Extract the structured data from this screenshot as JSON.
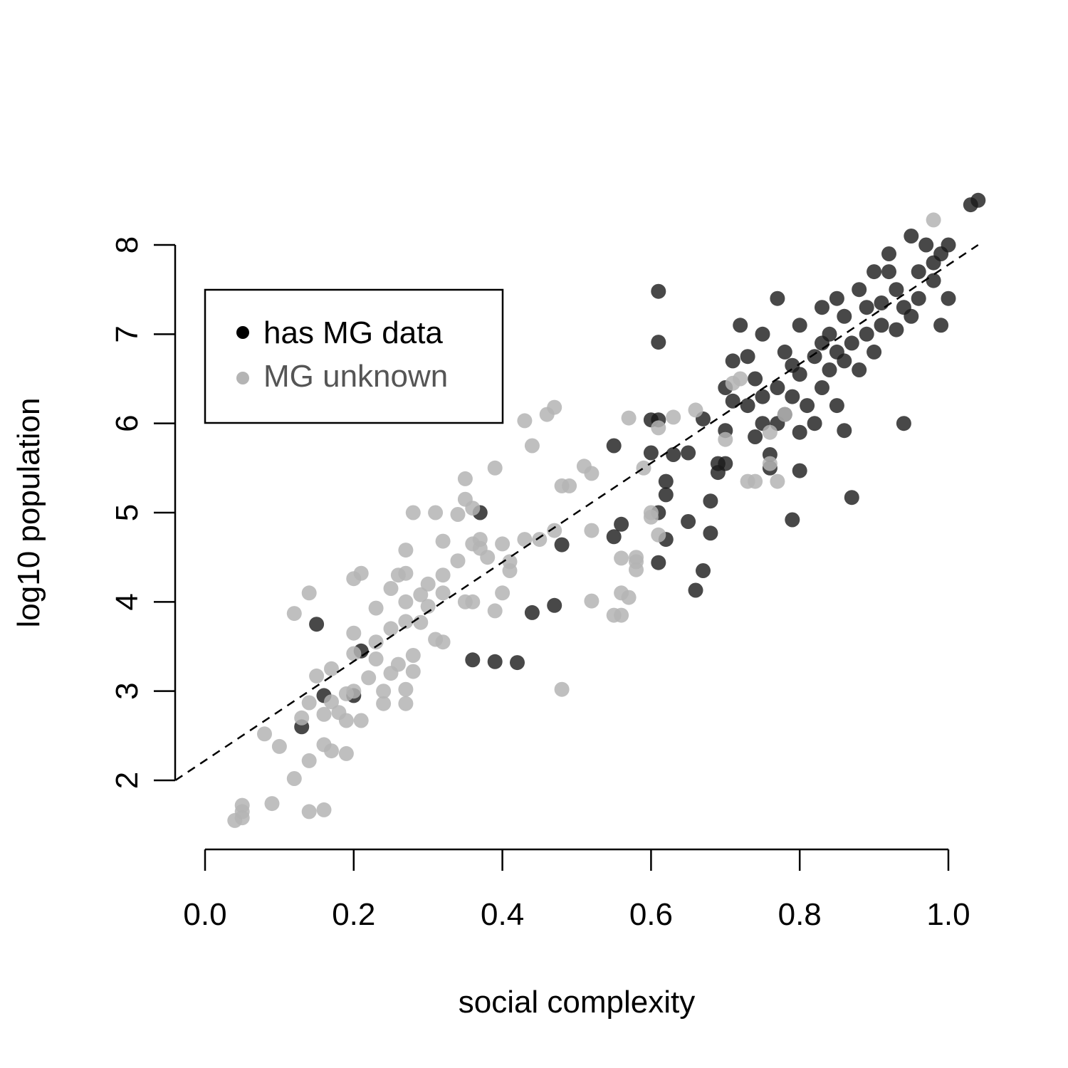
{
  "chart_data": {
    "type": "scatter",
    "xlabel": "social complexity",
    "ylabel": "log10 population",
    "xlim": [
      0.0,
      1.0
    ],
    "ylim": [
      2,
      8
    ],
    "x_ticks": [
      "0.0",
      "0.2",
      "0.4",
      "0.6",
      "0.8",
      "1.0"
    ],
    "y_ticks": [
      "2",
      "3",
      "4",
      "5",
      "6",
      "7",
      "8"
    ],
    "reference_line": {
      "style": "dashed",
      "from": [
        -0.04,
        2.0
      ],
      "to": [
        1.04,
        8.0
      ]
    },
    "legend": {
      "position": "top-left",
      "entries": [
        {
          "label": "has MG data",
          "color": "#000000"
        },
        {
          "label": "MG unknown",
          "color": "#b4b4b4"
        }
      ]
    },
    "series": [
      {
        "name": "has MG data",
        "color": "#1a1a1a",
        "points": [
          [
            0.13,
            2.6
          ],
          [
            0.16,
            2.95
          ],
          [
            0.2,
            2.95
          ],
          [
            0.15,
            3.75
          ],
          [
            0.21,
            3.45
          ],
          [
            0.36,
            3.35
          ],
          [
            0.39,
            3.33
          ],
          [
            0.42,
            3.32
          ],
          [
            0.44,
            3.88
          ],
          [
            0.47,
            3.96
          ],
          [
            0.37,
            5.0
          ],
          [
            0.48,
            4.64
          ],
          [
            0.55,
            4.73
          ],
          [
            0.56,
            4.87
          ],
          [
            0.55,
            5.75
          ],
          [
            0.61,
            4.44
          ],
          [
            0.61,
            5.0
          ],
          [
            0.62,
            4.7
          ],
          [
            0.62,
            5.2
          ],
          [
            0.63,
            5.65
          ],
          [
            0.62,
            5.35
          ],
          [
            0.61,
            6.04
          ],
          [
            0.6,
            6.04
          ],
          [
            0.6,
            5.67
          ],
          [
            0.61,
            6.91
          ],
          [
            0.61,
            7.48
          ],
          [
            0.65,
            5.67
          ],
          [
            0.65,
            4.9
          ],
          [
            0.66,
            4.13
          ],
          [
            0.67,
            4.35
          ],
          [
            0.68,
            4.77
          ],
          [
            0.68,
            5.13
          ],
          [
            0.67,
            6.05
          ],
          [
            0.69,
            5.55
          ],
          [
            0.69,
            5.45
          ],
          [
            0.7,
            5.55
          ],
          [
            0.7,
            5.92
          ],
          [
            0.7,
            6.4
          ],
          [
            0.71,
            6.25
          ],
          [
            0.71,
            6.7
          ],
          [
            0.72,
            7.1
          ],
          [
            0.73,
            6.2
          ],
          [
            0.73,
            6.75
          ],
          [
            0.74,
            5.85
          ],
          [
            0.74,
            6.5
          ],
          [
            0.75,
            6.3
          ],
          [
            0.75,
            7.0
          ],
          [
            0.75,
            6.0
          ],
          [
            0.76,
            5.5
          ],
          [
            0.76,
            5.65
          ],
          [
            0.77,
            6.0
          ],
          [
            0.77,
            6.4
          ],
          [
            0.77,
            7.4
          ],
          [
            0.78,
            6.8
          ],
          [
            0.78,
            6.1
          ],
          [
            0.79,
            6.65
          ],
          [
            0.79,
            6.3
          ],
          [
            0.8,
            5.9
          ],
          [
            0.79,
            4.92
          ],
          [
            0.8,
            5.47
          ],
          [
            0.8,
            6.55
          ],
          [
            0.8,
            7.1
          ],
          [
            0.81,
            6.2
          ],
          [
            0.82,
            6.75
          ],
          [
            0.82,
            6.0
          ],
          [
            0.83,
            6.4
          ],
          [
            0.83,
            6.9
          ],
          [
            0.83,
            7.3
          ],
          [
            0.84,
            6.6
          ],
          [
            0.84,
            7.0
          ],
          [
            0.85,
            6.8
          ],
          [
            0.85,
            7.4
          ],
          [
            0.85,
            6.2
          ],
          [
            0.86,
            5.92
          ],
          [
            0.86,
            6.7
          ],
          [
            0.86,
            7.2
          ],
          [
            0.87,
            6.9
          ],
          [
            0.87,
            5.17
          ],
          [
            0.88,
            7.5
          ],
          [
            0.88,
            6.6
          ],
          [
            0.89,
            7.0
          ],
          [
            0.89,
            7.3
          ],
          [
            0.9,
            7.7
          ],
          [
            0.9,
            6.8
          ],
          [
            0.91,
            7.1
          ],
          [
            0.91,
            7.35
          ],
          [
            0.92,
            7.9
          ],
          [
            0.92,
            7.7
          ],
          [
            0.93,
            7.5
          ],
          [
            0.93,
            7.05
          ],
          [
            0.94,
            6.0
          ],
          [
            0.94,
            7.3
          ],
          [
            0.95,
            7.2
          ],
          [
            0.95,
            8.1
          ],
          [
            0.96,
            7.4
          ],
          [
            0.96,
            7.7
          ],
          [
            0.97,
            8.0
          ],
          [
            0.98,
            7.6
          ],
          [
            0.98,
            7.8
          ],
          [
            0.99,
            7.9
          ],
          [
            0.99,
            7.1
          ],
          [
            1.0,
            8.0
          ],
          [
            1.0,
            7.4
          ],
          [
            1.03,
            8.45
          ],
          [
            1.04,
            8.5
          ]
        ]
      },
      {
        "name": "MG unknown",
        "color": "#b4b4b4",
        "points": [
          [
            0.04,
            1.55
          ],
          [
            0.05,
            1.58
          ],
          [
            0.05,
            1.65
          ],
          [
            0.05,
            1.72
          ],
          [
            0.09,
            1.74
          ],
          [
            0.14,
            1.65
          ],
          [
            0.16,
            1.67
          ],
          [
            0.1,
            2.38
          ],
          [
            0.12,
            2.02
          ],
          [
            0.14,
            2.22
          ],
          [
            0.08,
            2.52
          ],
          [
            0.16,
            2.4
          ],
          [
            0.17,
            2.33
          ],
          [
            0.19,
            2.3
          ],
          [
            0.13,
            2.7
          ],
          [
            0.16,
            2.74
          ],
          [
            0.18,
            2.76
          ],
          [
            0.19,
            2.67
          ],
          [
            0.21,
            2.67
          ],
          [
            0.14,
            2.87
          ],
          [
            0.17,
            2.88
          ],
          [
            0.19,
            2.97
          ],
          [
            0.2,
            3.0
          ],
          [
            0.22,
            3.15
          ],
          [
            0.24,
            3.0
          ],
          [
            0.24,
            2.86
          ],
          [
            0.27,
            2.86
          ],
          [
            0.27,
            3.02
          ],
          [
            0.15,
            3.17
          ],
          [
            0.17,
            3.25
          ],
          [
            0.2,
            3.42
          ],
          [
            0.23,
            3.36
          ],
          [
            0.25,
            3.2
          ],
          [
            0.26,
            3.3
          ],
          [
            0.28,
            3.22
          ],
          [
            0.28,
            3.4
          ],
          [
            0.2,
            3.65
          ],
          [
            0.23,
            3.55
          ],
          [
            0.25,
            3.7
          ],
          [
            0.27,
            3.78
          ],
          [
            0.29,
            3.77
          ],
          [
            0.3,
            3.95
          ],
          [
            0.31,
            3.58
          ],
          [
            0.32,
            3.55
          ],
          [
            0.12,
            3.87
          ],
          [
            0.2,
            4.26
          ],
          [
            0.21,
            4.32
          ],
          [
            0.23,
            3.93
          ],
          [
            0.25,
            4.15
          ],
          [
            0.26,
            4.3
          ],
          [
            0.27,
            4.0
          ],
          [
            0.27,
            4.32
          ],
          [
            0.29,
            4.08
          ],
          [
            0.3,
            4.2
          ],
          [
            0.32,
            4.1
          ],
          [
            0.32,
            4.3
          ],
          [
            0.14,
            4.1
          ],
          [
            0.34,
            4.46
          ],
          [
            0.35,
            4.0
          ],
          [
            0.36,
            4.0
          ],
          [
            0.36,
            4.65
          ],
          [
            0.37,
            4.6
          ],
          [
            0.37,
            4.7
          ],
          [
            0.38,
            4.5
          ],
          [
            0.39,
            3.9
          ],
          [
            0.4,
            4.1
          ],
          [
            0.4,
            4.65
          ],
          [
            0.41,
            4.35
          ],
          [
            0.41,
            4.45
          ],
          [
            0.27,
            4.58
          ],
          [
            0.28,
            5.0
          ],
          [
            0.31,
            5.0
          ],
          [
            0.32,
            4.68
          ],
          [
            0.34,
            4.98
          ],
          [
            0.35,
            5.38
          ],
          [
            0.35,
            5.15
          ],
          [
            0.36,
            5.05
          ],
          [
            0.39,
            5.5
          ],
          [
            0.43,
            4.7
          ],
          [
            0.45,
            4.7
          ],
          [
            0.47,
            4.8
          ],
          [
            0.48,
            5.3
          ],
          [
            0.49,
            5.3
          ],
          [
            0.44,
            5.75
          ],
          [
            0.43,
            6.03
          ],
          [
            0.46,
            6.1
          ],
          [
            0.47,
            6.18
          ],
          [
            0.51,
            5.52
          ],
          [
            0.52,
            5.44
          ],
          [
            0.52,
            4.8
          ],
          [
            0.52,
            4.01
          ],
          [
            0.55,
            3.85
          ],
          [
            0.56,
            3.85
          ],
          [
            0.56,
            4.1
          ],
          [
            0.57,
            4.05
          ],
          [
            0.56,
            4.49
          ],
          [
            0.58,
            4.36
          ],
          [
            0.58,
            4.45
          ],
          [
            0.58,
            4.5
          ],
          [
            0.57,
            6.06
          ],
          [
            0.59,
            5.5
          ],
          [
            0.6,
            4.95
          ],
          [
            0.6,
            5.0
          ],
          [
            0.61,
            4.75
          ],
          [
            0.61,
            5.95
          ],
          [
            0.63,
            6.07
          ],
          [
            0.66,
            6.15
          ],
          [
            0.48,
            3.02
          ],
          [
            0.7,
            5.82
          ],
          [
            0.71,
            6.45
          ],
          [
            0.73,
            5.35
          ],
          [
            0.74,
            5.35
          ],
          [
            0.76,
            5.9
          ],
          [
            0.76,
            5.55
          ],
          [
            0.77,
            5.35
          ],
          [
            0.78,
            6.1
          ],
          [
            0.72,
            6.5
          ],
          [
            0.98,
            8.28
          ]
        ]
      }
    ]
  }
}
